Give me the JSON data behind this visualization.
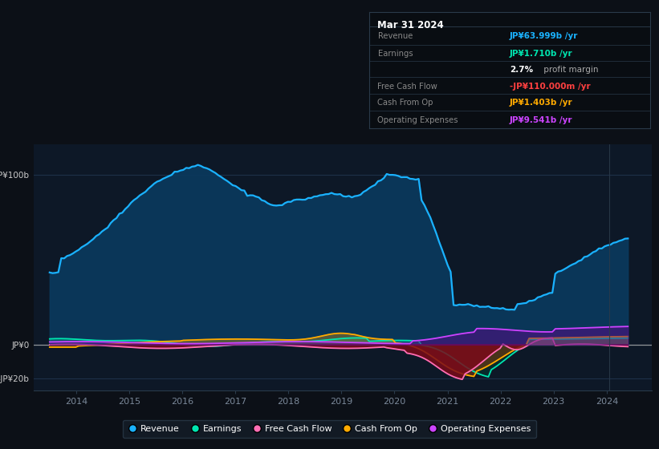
{
  "background_color": "#0c1017",
  "plot_bg_color": "#0d1827",
  "title_box_bg": "#090d12",
  "ylabel_100": "JP¥100b",
  "ylabel_0": "JP¥0",
  "ylabel_neg20": "-JP¥20b",
  "xlim": [
    2013.2,
    2024.85
  ],
  "ylim": [
    -27,
    118
  ],
  "xticks": [
    2014,
    2015,
    2016,
    2017,
    2018,
    2019,
    2020,
    2021,
    2022,
    2023,
    2024
  ],
  "revenue_color": "#1ab2ff",
  "revenue_fill": "#0a3a5e",
  "earnings_color": "#00e5b0",
  "earnings_fill": "#00e5b0",
  "fcf_color": "#ff6eb4",
  "fcf_fill_neg": "#7a0a1a",
  "cashop_color": "#ffaa00",
  "cashop_fill": "#ffaa00",
  "opex_color": "#cc44ff",
  "opex_fill": "#5a0a8a",
  "grid_color": "#1e3048",
  "zero_line_color": "#cccccc",
  "tick_color": "#7a8899",
  "label_color": "#cccccc",
  "separator_color": "#2a3a4a",
  "legend_bg": "#141d28",
  "legend_border": "#2a3a4a",
  "info_bg": "#090d12",
  "info_border": "#2a3a4a",
  "legend_entries": [
    {
      "label": "Revenue",
      "color": "#1ab2ff"
    },
    {
      "label": "Earnings",
      "color": "#00e5b0"
    },
    {
      "label": "Free Cash Flow",
      "color": "#ff6eb4"
    },
    {
      "label": "Cash From Op",
      "color": "#ffaa00"
    },
    {
      "label": "Operating Expenses",
      "color": "#cc44ff"
    }
  ]
}
